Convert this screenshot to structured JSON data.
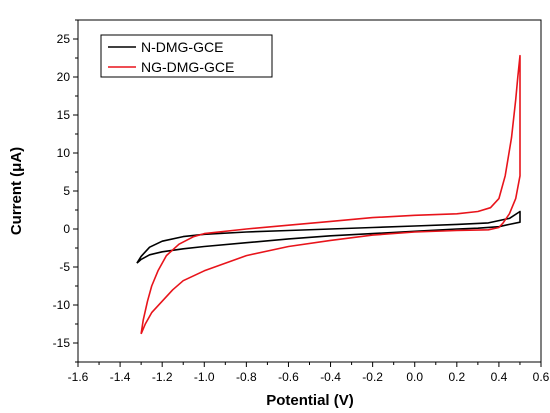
{
  "chart_data": {
    "type": "line",
    "title": "",
    "xlabel": "Potential (V)",
    "ylabel": "Current (μA)",
    "xlim": [
      -1.6,
      0.6
    ],
    "ylim": [
      -17.5,
      27.5
    ],
    "x_ticks": [
      -1.6,
      -1.4,
      -1.2,
      -1.0,
      -0.8,
      -0.6,
      -0.4,
      -0.2,
      0.0,
      0.2,
      0.4,
      0.6
    ],
    "x_tick_labels": [
      "-1.6",
      "-1.4",
      "-1.2",
      "-1.0",
      "-0.8",
      "-0.6",
      "-0.4",
      "-0.2",
      "0.0",
      "0.2",
      "0.4",
      "0.6"
    ],
    "y_ticks": [
      -15,
      -10,
      -5,
      0,
      5,
      10,
      15,
      20,
      25
    ],
    "y_tick_labels": [
      "-15",
      "-10",
      "-5",
      "0",
      "5",
      "10",
      "15",
      "20",
      "25"
    ],
    "grid": false,
    "legend_position": "top-left",
    "series": [
      {
        "name": "N-DMG-GCE",
        "color": "#000000",
        "x": [
          -1.32,
          -1.3,
          -1.26,
          -1.2,
          -1.1,
          -1.0,
          -0.8,
          -0.6,
          -0.4,
          -0.2,
          0.0,
          0.2,
          0.35,
          0.45,
          0.5,
          0.5,
          0.45,
          0.4,
          0.3,
          0.2,
          0.0,
          -0.2,
          -0.4,
          -0.6,
          -0.8,
          -1.0,
          -1.1,
          -1.2,
          -1.26,
          -1.3,
          -1.32
        ],
        "y": [
          -4.5,
          -3.6,
          -2.4,
          -1.6,
          -1.0,
          -0.7,
          -0.4,
          -0.2,
          0.0,
          0.2,
          0.4,
          0.6,
          0.8,
          1.4,
          2.3,
          0.9,
          0.6,
          0.3,
          0.1,
          0.0,
          -0.3,
          -0.6,
          -0.9,
          -1.3,
          -1.8,
          -2.3,
          -2.6,
          -3.0,
          -3.4,
          -4.0,
          -4.5
        ]
      },
      {
        "name": "NG-DMG-GCE",
        "color": "#e8141b",
        "x": [
          -1.3,
          -1.29,
          -1.27,
          -1.25,
          -1.22,
          -1.18,
          -1.12,
          -1.05,
          -1.0,
          -0.8,
          -0.6,
          -0.4,
          -0.2,
          0.0,
          0.2,
          0.3,
          0.36,
          0.4,
          0.43,
          0.46,
          0.48,
          0.49,
          0.5,
          0.5,
          0.48,
          0.45,
          0.42,
          0.4,
          0.35,
          0.2,
          0.0,
          -0.2,
          -0.4,
          -0.6,
          -0.8,
          -1.0,
          -1.1,
          -1.15,
          -1.2,
          -1.25,
          -1.28,
          -1.3
        ],
        "y": [
          -13.8,
          -12.0,
          -9.5,
          -7.5,
          -5.5,
          -3.5,
          -2.0,
          -1.0,
          -0.6,
          0.0,
          0.5,
          1.0,
          1.5,
          1.8,
          2.0,
          2.3,
          2.8,
          4.0,
          7.0,
          12.0,
          17.0,
          20.0,
          22.8,
          7.0,
          4.0,
          2.0,
          0.8,
          0.2,
          -0.1,
          -0.2,
          -0.4,
          -0.8,
          -1.5,
          -2.3,
          -3.5,
          -5.5,
          -6.8,
          -8.0,
          -9.5,
          -11.0,
          -12.5,
          -13.8
        ]
      }
    ]
  }
}
